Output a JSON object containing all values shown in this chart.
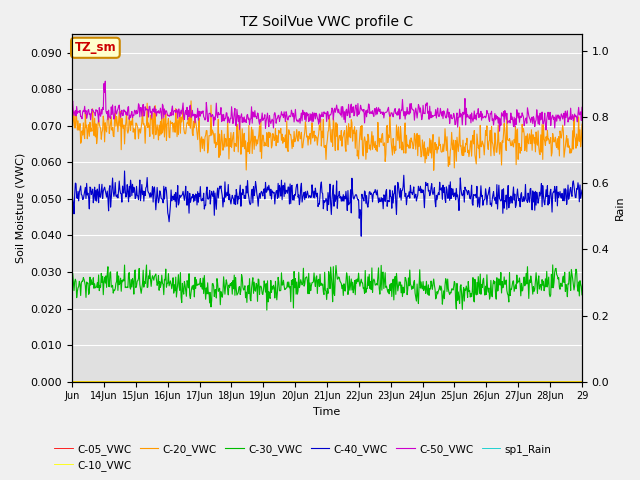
{
  "title": "TZ SoilVue VWC profile C",
  "xlabel": "Time",
  "ylabel_left": "Soil Moisture (VWC)",
  "ylabel_right": "Rain",
  "ylim_left": [
    0.0,
    0.095
  ],
  "ylim_right": [
    0.0,
    1.05
  ],
  "yticks_left": [
    0.0,
    0.01,
    0.02,
    0.03,
    0.04,
    0.05,
    0.06,
    0.07,
    0.08,
    0.09
  ],
  "yticks_right": [
    0.0,
    0.2,
    0.4,
    0.6,
    0.8,
    1.0
  ],
  "xtick_labels": [
    "Jun",
    "14Jun",
    "15Jun",
    "16Jun",
    "17Jun",
    "18Jun",
    "19Jun",
    "20Jun",
    "21Jun",
    "22Jun",
    "23Jun",
    "24Jun",
    "25Jun",
    "26Jun",
    "27Jun",
    "28Jun",
    "29"
  ],
  "legend_entries": [
    "C-05_VWC",
    "C-10_VWC",
    "C-20_VWC",
    "C-30_VWC",
    "C-40_VWC",
    "C-50_VWC",
    "sp1_Rain"
  ],
  "legend_colors": [
    "#ff0000",
    "#ffff00",
    "#ff8800",
    "#00bb00",
    "#0000cc",
    "#cc00cc",
    "#00cccc"
  ],
  "c20_color": "#ff9900",
  "c30_color": "#00bb00",
  "c40_color": "#0000cc",
  "c50_color": "#cc00cc",
  "c10_color": "#ffff00",
  "c05_color": "#ff0000",
  "rain_color": "#00cccc",
  "fig_facecolor": "#f0f0f0",
  "plot_facecolor": "#e0e0e0",
  "grid_color": "#ffffff",
  "tag_text": "TZ_sm",
  "tag_facecolor": "#ffffcc",
  "tag_edgecolor": "#cc8800",
  "tag_textcolor": "#cc0000",
  "n_days": 16,
  "n_per_day": 48,
  "seed": 42
}
